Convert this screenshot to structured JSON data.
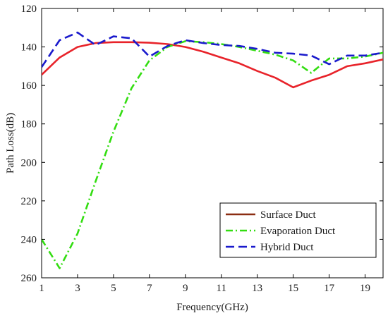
{
  "chart_data": {
    "type": "line",
    "title": "",
    "xlabel": "Frequency(GHz)",
    "ylabel": "Path Loss(dB)",
    "xlim": [
      1,
      20
    ],
    "ylim": [
      120,
      260
    ],
    "y_inverted": true,
    "x_ticks": [
      1,
      3,
      5,
      7,
      9,
      11,
      13,
      15,
      17,
      19
    ],
    "y_ticks": [
      120,
      140,
      160,
      180,
      200,
      220,
      240,
      260
    ],
    "grid": false,
    "legend_position": "bottom-right",
    "x": [
      1,
      2,
      3,
      4,
      5,
      6,
      7,
      8,
      9,
      10,
      11,
      12,
      13,
      14,
      15,
      16,
      17,
      18,
      19,
      20
    ],
    "series": [
      {
        "name": "Surface Duct",
        "color": "#8b2e12",
        "plot_color": "#e8232a",
        "dash": "solid",
        "values": [
          154.5,
          145.5,
          140,
          138,
          137.5,
          137.5,
          137.8,
          138.5,
          140,
          142.5,
          145.5,
          148.5,
          152.5,
          156,
          161,
          157.5,
          154.5,
          150,
          148.5,
          146.5
        ]
      },
      {
        "name": "Evaporation Duct",
        "color": "#33dd11",
        "plot_color": "#33dd11",
        "dash": "dashdot",
        "values": [
          240,
          255,
          237,
          210,
          184,
          161.5,
          147,
          140,
          137,
          137.5,
          138.5,
          140,
          142,
          144,
          147,
          153.5,
          146,
          146,
          145,
          143
        ]
      },
      {
        "name": "Hybrid Duct",
        "color": "#1a1acc",
        "plot_color": "#1a1acc",
        "dash": "dashed",
        "values": [
          150.5,
          136.5,
          132.5,
          139,
          134.5,
          135.5,
          145,
          139.5,
          136.5,
          138,
          139,
          139.5,
          141,
          143,
          143.5,
          144.5,
          149,
          144.5,
          144.5,
          143
        ]
      }
    ]
  }
}
